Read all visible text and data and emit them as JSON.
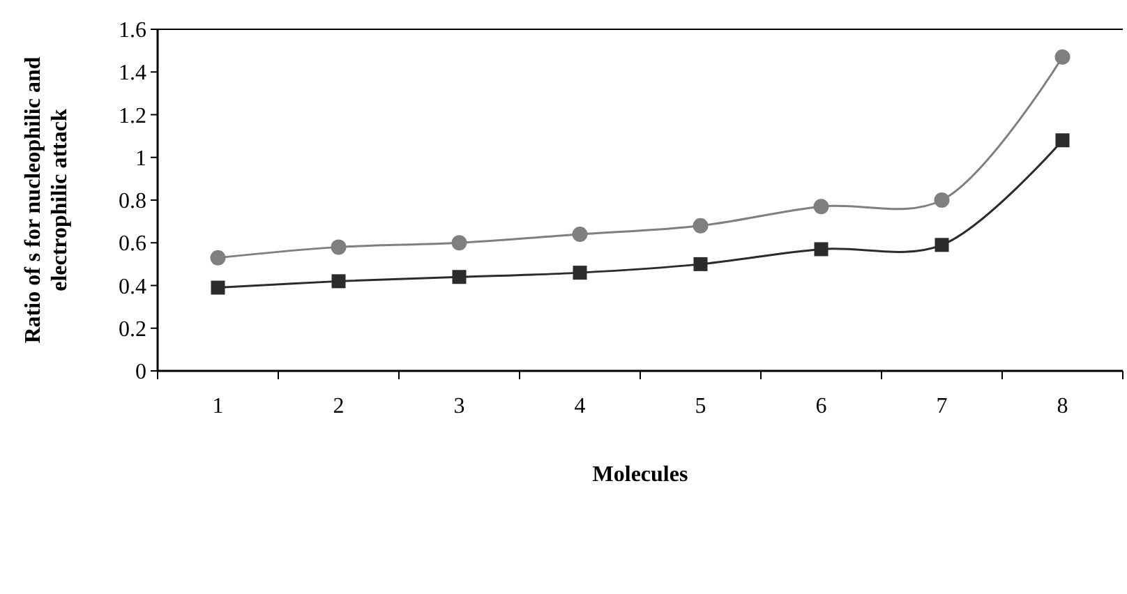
{
  "chart_data": {
    "type": "line",
    "xlabel": "Molecules",
    "ylabel": "Ratio of s for nucleophilic and electrophilic attack",
    "categories": [
      "1",
      "2",
      "3",
      "4",
      "5",
      "6",
      "7",
      "8"
    ],
    "series": [
      {
        "color": "#7f7f7f",
        "marker": "circle",
        "values": [
          0.53,
          0.58,
          0.6,
          0.64,
          0.68,
          0.77,
          0.8,
          1.47
        ]
      },
      {
        "color": "#2b2b2b",
        "marker": "square",
        "values": [
          0.39,
          0.42,
          0.44,
          0.46,
          0.5,
          0.57,
          0.59,
          1.08
        ]
      }
    ],
    "ylim": [
      0,
      1.6
    ],
    "yticks": [
      0,
      0.2,
      0.4,
      0.6,
      0.8,
      1,
      1.2,
      1.4,
      1.6
    ],
    "grid": false
  }
}
